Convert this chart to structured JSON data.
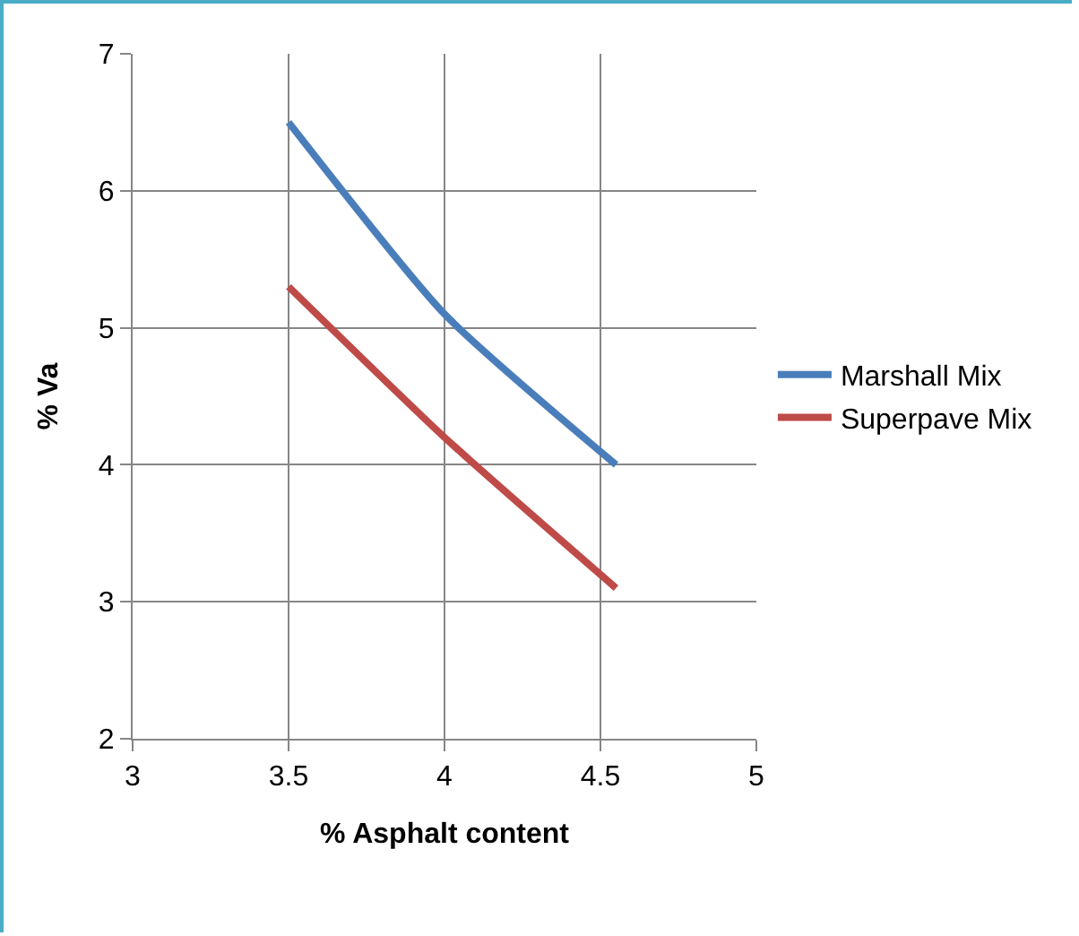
{
  "chart_data": {
    "type": "line",
    "xlabel": "% Asphalt content",
    "ylabel": "% Va",
    "xlim": [
      3,
      5
    ],
    "xticks": [
      3,
      3.5,
      4,
      4.5,
      5
    ],
    "ylim": [
      2,
      7
    ],
    "yticks": [
      2,
      3,
      4,
      5,
      6,
      7
    ],
    "grid": true,
    "legend": "right",
    "marker": "none",
    "line_style": "solid",
    "series": [
      {
        "name": "Marshall Mix",
        "color": "#4a7ebb",
        "x": [
          3.5,
          4,
          4.55
        ],
        "values": [
          6.5,
          5.1,
          4.0
        ]
      },
      {
        "name": "Superpave Mix",
        "color": "#be4b48",
        "x": [
          3.5,
          4,
          4.55
        ],
        "values": [
          5.3,
          4.2,
          3.1
        ]
      }
    ]
  }
}
